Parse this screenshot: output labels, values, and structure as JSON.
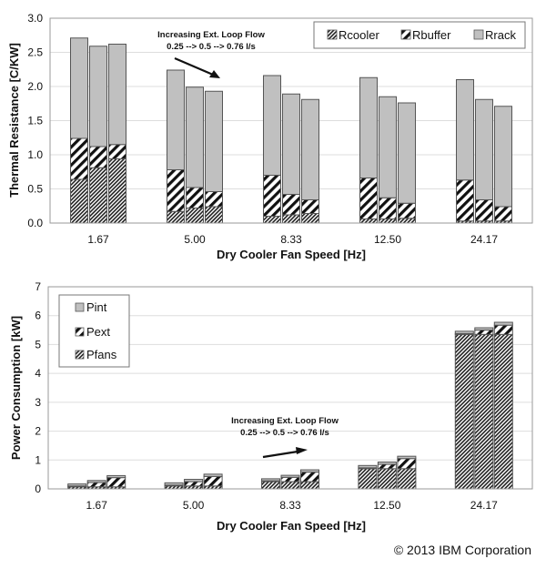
{
  "chart_data": [
    {
      "type": "bar",
      "stacked": true,
      "title": "",
      "xlabel": "Dry Cooler Fan Speed [Hz]",
      "ylabel": "Thermal Resistance [C/KW]",
      "ylim": [
        0,
        3.0
      ],
      "yticks": [
        "0.0",
        "0.5",
        "1.0",
        "1.5",
        "2.0",
        "2.5",
        "3.0"
      ],
      "ytick_values": [
        0,
        0.5,
        1.0,
        1.5,
        2.0,
        2.5,
        3.0
      ],
      "grid": true,
      "legend_position": "top-right",
      "legend_orientation": "horizontal",
      "categories": [
        "1.67",
        "5.00",
        "8.33",
        "12.50",
        "24.17"
      ],
      "bars_per_category": 3,
      "bar_subgroups": [
        "0.25 l/s",
        "0.5 l/s",
        "0.76 l/s"
      ],
      "series": [
        {
          "name": "Rcooler",
          "pattern": "dense-hatch",
          "values": [
            [
              0.64,
              0.81,
              0.94
            ],
            [
              0.17,
              0.22,
              0.24
            ],
            [
              0.1,
              0.12,
              0.14
            ],
            [
              0.06,
              0.06,
              0.07
            ],
            [
              0.03,
              0.03,
              0.03
            ]
          ]
        },
        {
          "name": "Rbuffer",
          "pattern": "wide-hatch",
          "values": [
            [
              0.6,
              0.31,
              0.21
            ],
            [
              0.61,
              0.3,
              0.22
            ],
            [
              0.6,
              0.3,
              0.2
            ],
            [
              0.6,
              0.31,
              0.22
            ],
            [
              0.6,
              0.31,
              0.21
            ]
          ]
        },
        {
          "name": "Rrack",
          "pattern": "solid-gray",
          "values": [
            [
              1.47,
              1.47,
              1.47
            ],
            [
              1.46,
              1.47,
              1.47
            ],
            [
              1.46,
              1.47,
              1.47
            ],
            [
              1.47,
              1.48,
              1.47
            ],
            [
              1.47,
              1.47,
              1.47
            ]
          ]
        }
      ],
      "annotation": {
        "line1": "Increasing Ext. Loop Flow",
        "line2": "0.25 --> 0.5 --> 0.76 l/s",
        "arrow_direction": "down-right"
      }
    },
    {
      "type": "bar",
      "stacked": true,
      "title": "",
      "xlabel": "Dry Cooler Fan Speed [Hz]",
      "ylabel": "Power Consumption [kW]",
      "ylim": [
        0,
        7
      ],
      "yticks": [
        "0",
        "1",
        "2",
        "3",
        "4",
        "5",
        "6",
        "7"
      ],
      "ytick_values": [
        0,
        1,
        2,
        3,
        4,
        5,
        6,
        7
      ],
      "grid": true,
      "legend_position": "top-left",
      "legend_orientation": "vertical",
      "categories": [
        "1.67",
        "5.00",
        "8.33",
        "12.50",
        "24.17"
      ],
      "bars_per_category": 3,
      "bar_subgroups": [
        "0.25 l/s",
        "0.5 l/s",
        "0.76 l/s"
      ],
      "series": [
        {
          "name": "Pfans",
          "pattern": "dense-hatch",
          "values": [
            [
              0.07,
              0.07,
              0.07
            ],
            [
              0.1,
              0.1,
              0.1
            ],
            [
              0.25,
              0.25,
              0.25
            ],
            [
              0.7,
              0.7,
              0.7
            ],
            [
              5.35,
              5.35,
              5.35
            ]
          ]
        },
        {
          "name": "Pext",
          "pattern": "wide-hatch",
          "values": [
            [
              0.03,
              0.15,
              0.32
            ],
            [
              0.03,
              0.15,
              0.33
            ],
            [
              0.03,
              0.15,
              0.33
            ],
            [
              0.03,
              0.15,
              0.35
            ],
            [
              0.03,
              0.15,
              0.32
            ]
          ]
        },
        {
          "name": "Pint",
          "pattern": "solid-gray",
          "values": [
            [
              0.07,
              0.07,
              0.07
            ],
            [
              0.08,
              0.08,
              0.08
            ],
            [
              0.07,
              0.07,
              0.08
            ],
            [
              0.08,
              0.08,
              0.08
            ],
            [
              0.08,
              0.08,
              0.1
            ]
          ]
        }
      ],
      "legend_order": [
        "Pint",
        "Pext",
        "Pfans"
      ],
      "annotation": {
        "line1": "Increasing Ext. Loop Flow",
        "line2": "0.25 --> 0.5 --> 0.76 l/s",
        "arrow_direction": "up-right"
      }
    }
  ],
  "colors": {
    "rack_fill": "#c0c0c0",
    "bar_stroke": "#555555",
    "grid": "#dddddd",
    "axis": "#888888"
  },
  "copyright": "© 2013 IBM Corporation"
}
